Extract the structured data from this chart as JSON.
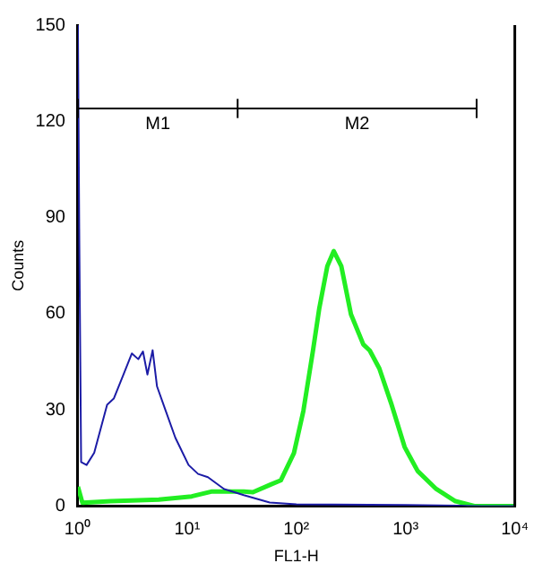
{
  "chart_data": {
    "type": "line",
    "xlabel": "FL1-H",
    "ylabel": "Counts",
    "log": "x",
    "xlim": [
      1,
      10000
    ],
    "xticks": [
      {
        "value": 1,
        "label": "10⁰"
      },
      {
        "value": 10,
        "label": "10¹"
      },
      {
        "value": 100,
        "label": "10²"
      },
      {
        "value": 1000,
        "label": "10³"
      },
      {
        "value": 10000,
        "label": "10⁴"
      }
    ],
    "ylim": [
      0,
      150
    ],
    "yticks": [
      0,
      30,
      60,
      90,
      120,
      150
    ],
    "grid": false,
    "legend": false,
    "marker": "none",
    "line_style": "solid",
    "annotations": [
      {
        "text": "M1",
        "x": 5.4,
        "y": 124
      },
      {
        "text": "M2",
        "x": 360,
        "y": 124
      }
    ],
    "series": [
      {
        "color": "#000000",
        "x": [
          1,
          29,
          4470
        ],
        "values": [
          124,
          124,
          124
        ],
        "errors": [
          3,
          3,
          3
        ]
      },
      {
        "color": "#1c1ca6",
        "x": [
          1,
          1.03,
          1.07,
          1.2,
          1.41,
          1.85,
          2.13,
          2.61,
          3.12,
          3.57,
          3.94,
          4.33,
          4.83,
          5.3,
          6.35,
          7.8,
          10.3,
          12.6,
          15.5,
          21.8,
          33,
          57,
          100,
          1000,
          5000,
          10000
        ],
        "values": [
          150,
          82,
          13.7,
          12.8,
          16.6,
          31.6,
          33.5,
          41,
          47.6,
          45.8,
          48.2,
          41,
          48.6,
          37.3,
          29.8,
          21.3,
          12.8,
          10,
          9,
          5.3,
          3.4,
          1.1,
          0.5,
          0.3,
          0,
          0
        ]
      },
      {
        "color": "#22ee22",
        "x": [
          1,
          1.1,
          2,
          5.5,
          11,
          16.6,
          33,
          40,
          59,
          72,
          95,
          116,
          142,
          162,
          192,
          220,
          258,
          316,
          410,
          470,
          575,
          745,
          980,
          1290,
          1910,
          2860,
          4260,
          10000
        ],
        "values": [
          6,
          1,
          1.5,
          2,
          3,
          4.5,
          4.5,
          4.3,
          6.8,
          8,
          16.5,
          29.7,
          48.5,
          61.6,
          74.8,
          79.5,
          74.8,
          59.8,
          50.4,
          48.5,
          42.9,
          31.6,
          18.4,
          10.9,
          5.3,
          1.5,
          0,
          0
        ]
      }
    ]
  }
}
